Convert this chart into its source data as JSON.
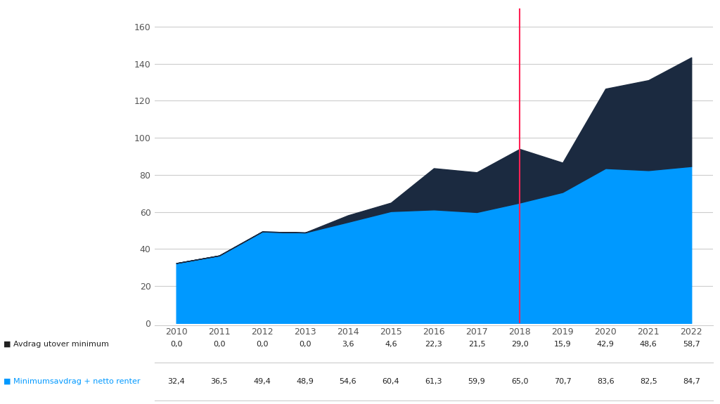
{
  "years": [
    2010,
    2011,
    2012,
    2013,
    2014,
    2015,
    2016,
    2017,
    2018,
    2019,
    2020,
    2021,
    2022
  ],
  "avdrag_utover_minimum": [
    0.0,
    0.0,
    0.0,
    0.0,
    3.6,
    4.6,
    22.3,
    21.5,
    29.0,
    15.9,
    42.9,
    48.6,
    58.7
  ],
  "minimumsavdrag_netto_renter": [
    32.4,
    36.5,
    49.4,
    48.9,
    54.6,
    60.4,
    61.3,
    59.9,
    65.0,
    70.7,
    83.6,
    82.5,
    84.7
  ],
  "color_blue": "#0099FF",
  "color_darkblue": "#1B2A40",
  "color_redline": "#FF2255",
  "vline_x": 2018,
  "ylim": [
    0,
    170
  ],
  "yticks": [
    0,
    20,
    40,
    60,
    80,
    100,
    120,
    140,
    160
  ],
  "legend_label_dark": "Avdrag utover minimum",
  "legend_label_blue": "Minimumsavdrag + netto renter",
  "background_color": "#ffffff",
  "grid_color": "#cccccc",
  "table_row1_label": "Avdrag utover minimum",
  "table_row2_label": "Minimumsavdrag + netto renter",
  "row1_vals": [
    "0,0",
    "0,0",
    "0,0",
    "0,0",
    "3,6",
    "4,6",
    "22,3",
    "21,5",
    "29,0",
    "15,9",
    "42,9",
    "48,6",
    "58,7"
  ],
  "row2_vals": [
    "32,4",
    "36,5",
    "49,4",
    "48,9",
    "54,6",
    "60,4",
    "61,3",
    "59,9",
    "65,0",
    "70,7",
    "83,6",
    "82,5",
    "84,7"
  ]
}
